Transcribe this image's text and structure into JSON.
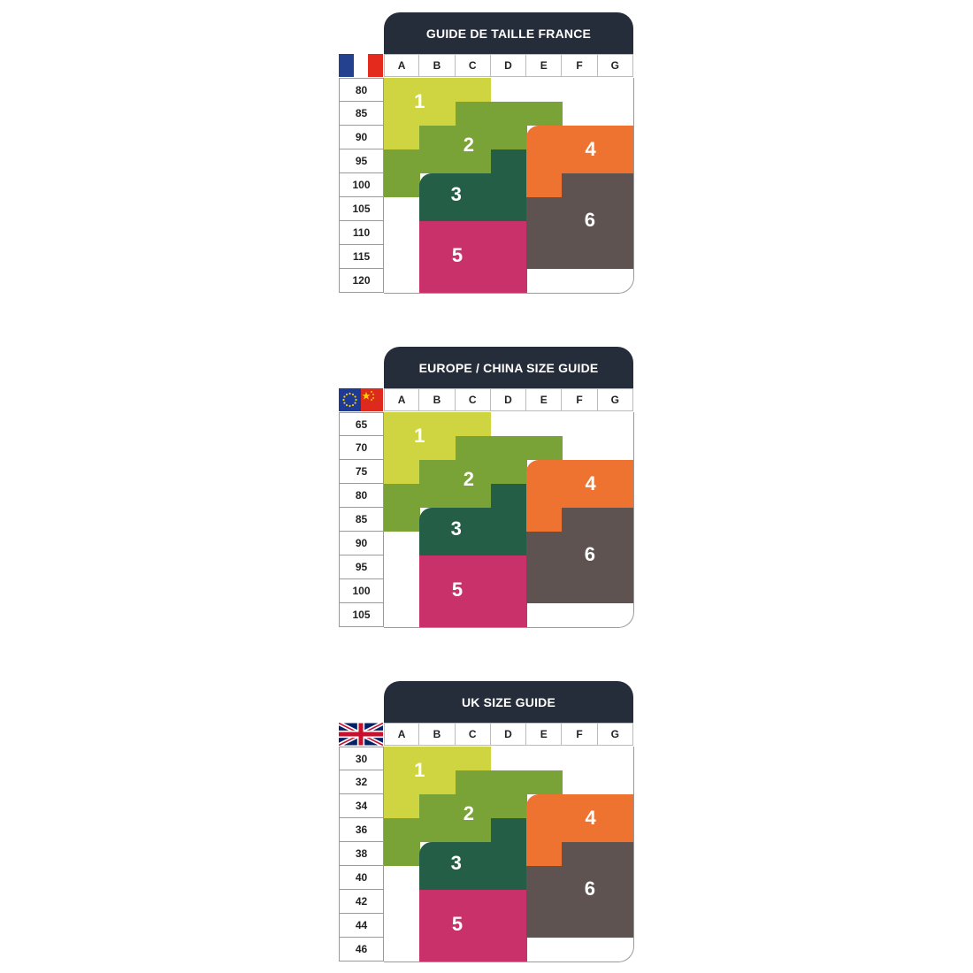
{
  "columns": [
    "A",
    "B",
    "C",
    "D",
    "E",
    "F",
    "G"
  ],
  "zone_colors": {
    "1": "#cfd441",
    "2": "#7aa337",
    "3": "#255e46",
    "4": "#ee7330",
    "5": "#c8316a",
    "6": "#5f5351"
  },
  "zone_map": [
    "111----",
    "11222--",
    "1222444",
    "2223444",
    "2333466",
    "-333666",
    "-555666",
    "-555666",
    "-555---"
  ],
  "zone_labels": [
    "1",
    "2",
    "3",
    "4",
    "5",
    "6"
  ],
  "guides": [
    {
      "title": "GUIDE DE TAILLE FRANCE",
      "flag": "france-flag",
      "sizes": [
        "80",
        "85",
        "90",
        "95",
        "100",
        "105",
        "110",
        "115",
        "120"
      ]
    },
    {
      "title": "EUROPE / CHINA SIZE GUIDE",
      "flag": "eu-china-flag",
      "sizes": [
        "65",
        "70",
        "75",
        "80",
        "85",
        "90",
        "95",
        "100",
        "105"
      ]
    },
    {
      "title": "UK SIZE GUIDE",
      "flag": "uk-flag",
      "sizes": [
        "30",
        "32",
        "34",
        "36",
        "38",
        "40",
        "42",
        "44",
        "46"
      ]
    }
  ]
}
